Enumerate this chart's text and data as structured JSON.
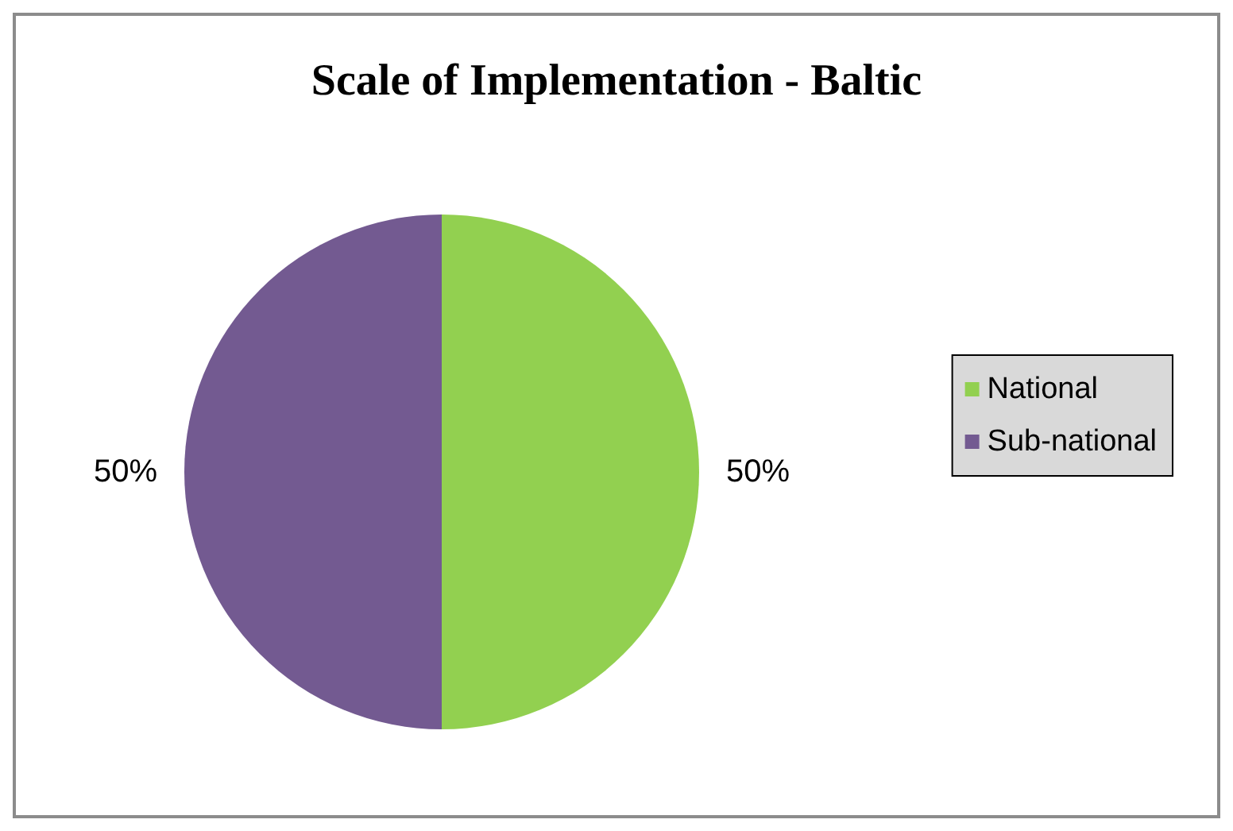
{
  "chart_data": {
    "type": "pie",
    "title": "Scale of Implementation - Baltic",
    "categories": [
      "National",
      "Sub-national"
    ],
    "values": [
      50,
      50
    ],
    "colors": [
      "#92d050",
      "#735a91"
    ],
    "value_labels": [
      "50%",
      "50%"
    ],
    "legend": "right"
  }
}
